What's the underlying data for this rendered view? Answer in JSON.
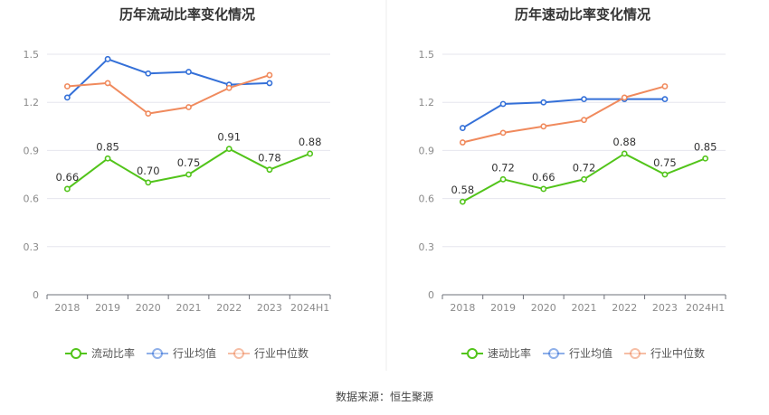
{
  "source_text": "数据来源：恒生聚源",
  "colors": {
    "main": "#52c41a",
    "avg": "#3470d8",
    "median": "#f08a5d"
  },
  "chart_data": [
    {
      "type": "line",
      "title": "历年流动比率变化情况",
      "categories": [
        "2018",
        "2019",
        "2020",
        "2021",
        "2022",
        "2023",
        "2024H1"
      ],
      "ylim": [
        0,
        1.5
      ],
      "yticks": [
        "0",
        "0.3",
        "0.6",
        "0.9",
        "1.2",
        "1.5"
      ],
      "grid": true,
      "legend_position": "bottom",
      "series": [
        {
          "name": "流动比率",
          "color": "#52c41a",
          "values": [
            0.66,
            0.85,
            0.7,
            0.75,
            0.91,
            0.78,
            0.88
          ],
          "labels": [
            "0.66",
            "0.85",
            "0.70",
            "0.75",
            "0.91",
            "0.78",
            "0.88"
          ]
        },
        {
          "name": "行业均值",
          "color": "#3470d8",
          "values": [
            1.23,
            1.47,
            1.38,
            1.39,
            1.31,
            1.32,
            null
          ]
        },
        {
          "name": "行业中位数",
          "color": "#f08a5d",
          "values": [
            1.3,
            1.32,
            1.13,
            1.17,
            1.29,
            1.37,
            null
          ]
        }
      ]
    },
    {
      "type": "line",
      "title": "历年速动比率变化情况",
      "categories": [
        "2018",
        "2019",
        "2020",
        "2021",
        "2022",
        "2023",
        "2024H1"
      ],
      "ylim": [
        0,
        1.5
      ],
      "yticks": [
        "0",
        "0.3",
        "0.6",
        "0.9",
        "1.2",
        "1.5"
      ],
      "grid": true,
      "legend_position": "bottom",
      "series": [
        {
          "name": "速动比率",
          "color": "#52c41a",
          "values": [
            0.58,
            0.72,
            0.66,
            0.72,
            0.88,
            0.75,
            0.85
          ],
          "labels": [
            "0.58",
            "0.72",
            "0.66",
            "0.72",
            "0.88",
            "0.75",
            "0.85"
          ]
        },
        {
          "name": "行业均值",
          "color": "#3470d8",
          "values": [
            1.04,
            1.19,
            1.2,
            1.22,
            1.22,
            1.22,
            null
          ]
        },
        {
          "name": "行业中位数",
          "color": "#f08a5d",
          "values": [
            0.95,
            1.01,
            1.05,
            1.09,
            1.23,
            1.3,
            null
          ]
        }
      ]
    }
  ]
}
